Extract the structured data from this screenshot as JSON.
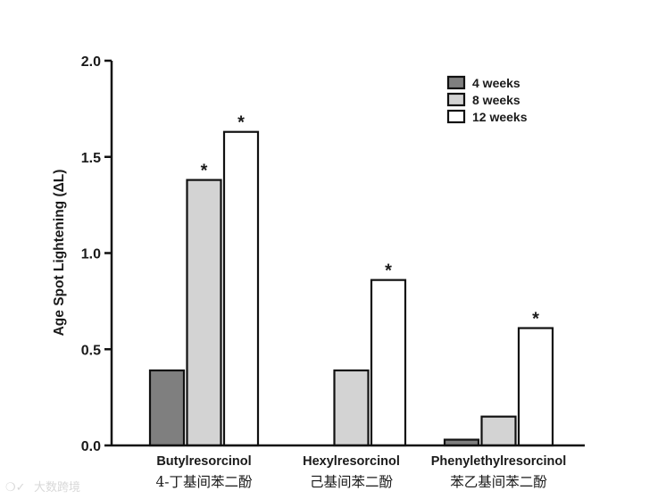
{
  "chart_data": {
    "type": "bar",
    "ylabel": "Age Spot Lightening (ΔL)",
    "ylim": [
      0,
      2.0
    ],
    "yticks": [
      "0.0",
      "0.5",
      "1.0",
      "1.5",
      "2.0"
    ],
    "ytick_values": [
      0,
      0.5,
      1.0,
      1.5,
      2.0
    ],
    "categories": [
      "Butylresorcinol",
      "Hexylresorcinol",
      "Phenylethylresorcinol"
    ],
    "categories_zh": [
      "4-丁基间苯二酚",
      "己基间苯二酚",
      "苯乙基间苯二酚"
    ],
    "legend_position": "top-right",
    "series": [
      {
        "name": "4 weeks",
        "color": "#7f7f7f",
        "values": [
          0.39,
          0.0,
          0.03
        ],
        "significant": [
          false,
          false,
          false
        ]
      },
      {
        "name": "8 weeks",
        "color": "#d3d3d3",
        "values": [
          1.38,
          0.39,
          0.15
        ],
        "significant": [
          true,
          false,
          false
        ]
      },
      {
        "name": "12 weeks",
        "color": "#ffffff",
        "values": [
          1.63,
          0.86,
          0.61
        ],
        "significant": [
          true,
          true,
          true
        ]
      }
    ],
    "significance_marker": "*"
  },
  "watermark": "大数跨境"
}
